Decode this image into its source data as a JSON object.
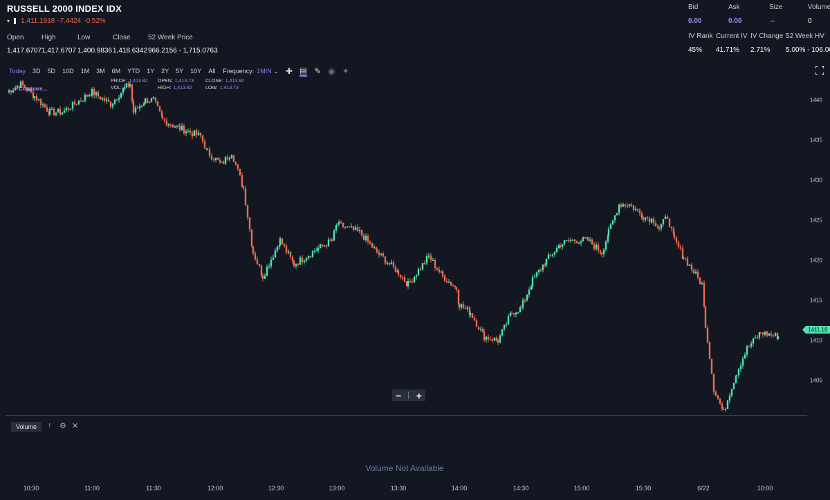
{
  "header": {
    "title": "RUSSELL 2000 INDEX IDX",
    "last_price": "1,411.1918",
    "change": "-7.4424",
    "change_pct": "-0.52%"
  },
  "ohlc": [
    {
      "label": "Open",
      "value": "1,417.6707"
    },
    {
      "label": "High",
      "value": "1,417.6707"
    },
    {
      "label": "Low",
      "value": "1,400.9836"
    },
    {
      "label": "Close",
      "value": "1,418.6342"
    },
    {
      "label": "52 Week Price",
      "value": "966.2156 - 1,715.0763"
    }
  ],
  "quote": [
    {
      "label": "Bid",
      "value": "0.00"
    },
    {
      "label": "Ask",
      "value": "0.00"
    },
    {
      "label": "Size",
      "value": "–"
    },
    {
      "label": "Volume",
      "value": "0"
    }
  ],
  "iv": [
    {
      "label": "IV Rank",
      "value": "45%"
    },
    {
      "label": "Current IV",
      "value": "41.71%"
    },
    {
      "label": "IV Change",
      "value": "2.71%"
    },
    {
      "label": "52 Week HV",
      "value": "5.00% - 106.00%"
    }
  ],
  "range_buttons": [
    "Today",
    "3D",
    "5D",
    "10D",
    "1M",
    "3M",
    "6M",
    "YTD",
    "1Y",
    "2Y",
    "5Y",
    "10Y",
    "All"
  ],
  "active_range": "Today",
  "frequency": {
    "label": "Frequency:",
    "value": "1MIN"
  },
  "compare_label": "+ Compare...",
  "hover": {
    "price_label": "PRICE:",
    "price": "1,413.82",
    "vol_label": "VOL:",
    "vol": "0",
    "open_label": "OPEN:",
    "open": "1,413.73",
    "high_label": "HIGH:",
    "high": "1,413.92",
    "close_label": "CLOSE:",
    "close": "1,413.92",
    "low_label": "LOW:",
    "low": "1,413.73"
  },
  "volume_panel": {
    "tab": "Volume",
    "message": "Volume Not Available"
  },
  "last_tag": "1411.19",
  "colors": {
    "up": "#4fe3b0",
    "down": "#f26b4a",
    "accent": "#8b7cf6",
    "background": "#121722"
  },
  "chart_data": {
    "type": "candlestick",
    "interval": "1 minute",
    "x_ticks": [
      "10:30",
      "11:00",
      "11:30",
      "12:00",
      "12:30",
      "13:00",
      "13:30",
      "14:00",
      "14:30",
      "15:00",
      "15:30",
      "6/22",
      "10:00"
    ],
    "y_ticks": [
      1440,
      1435,
      1430,
      1425,
      1420,
      1415,
      1410,
      1405
    ],
    "ylim": [
      1400.5,
      1442.5
    ],
    "series_close": [
      {
        "t": "10:15",
        "v": 1441.0
      },
      {
        "t": "10:25",
        "v": 1442.0
      },
      {
        "t": "10:33",
        "v": 1440.5
      },
      {
        "t": "10:40",
        "v": 1438.5
      },
      {
        "t": "10:50",
        "v": 1438.5
      },
      {
        "t": "11:00",
        "v": 1441.0
      },
      {
        "t": "11:10",
        "v": 1439.5
      },
      {
        "t": "11:22",
        "v": 1441.5
      },
      {
        "t": "11:25",
        "v": 1442.0
      },
      {
        "t": "11:28",
        "v": 1438.5
      },
      {
        "t": "11:35",
        "v": 1440.0
      },
      {
        "t": "11:40",
        "v": 1440.0
      },
      {
        "t": "11:45",
        "v": 1437.5
      },
      {
        "t": "11:55",
        "v": 1436.5
      },
      {
        "t": "12:00",
        "v": 1435.5
      },
      {
        "t": "12:05",
        "v": 1433.5
      },
      {
        "t": "12:08",
        "v": 1432.0
      },
      {
        "t": "12:12",
        "v": 1433.5
      },
      {
        "t": "12:16",
        "v": 1429.0
      },
      {
        "t": "12:20",
        "v": 1421.0
      },
      {
        "t": "12:23",
        "v": 1418.0
      },
      {
        "t": "12:30",
        "v": 1422.5
      },
      {
        "t": "12:38",
        "v": 1419.5
      },
      {
        "t": "12:45",
        "v": 1421.5
      },
      {
        "t": "12:55",
        "v": 1422.5
      },
      {
        "t": "13:00",
        "v": 1424.5
      },
      {
        "t": "13:08",
        "v": 1423.5
      },
      {
        "t": "13:15",
        "v": 1421.0
      },
      {
        "t": "13:25",
        "v": 1418.5
      },
      {
        "t": "13:33",
        "v": 1417.0
      },
      {
        "t": "13:42",
        "v": 1420.5
      },
      {
        "t": "13:48",
        "v": 1418.0
      },
      {
        "t": "13:55",
        "v": 1416.5
      },
      {
        "t": "14:00",
        "v": 1414.5
      },
      {
        "t": "14:05",
        "v": 1413.5
      },
      {
        "t": "14:10",
        "v": 1410.5
      },
      {
        "t": "14:17",
        "v": 1410.0
      },
      {
        "t": "14:25",
        "v": 1413.5
      },
      {
        "t": "14:30",
        "v": 1414.0
      },
      {
        "t": "14:35",
        "v": 1417.5
      },
      {
        "t": "14:42",
        "v": 1420.0
      },
      {
        "t": "14:50",
        "v": 1422.0
      },
      {
        "t": "14:57",
        "v": 1422.5
      },
      {
        "t": "15:05",
        "v": 1422.5
      },
      {
        "t": "15:10",
        "v": 1421.0
      },
      {
        "t": "15:16",
        "v": 1423.5
      },
      {
        "t": "15:22",
        "v": 1427.0
      },
      {
        "t": "15:28",
        "v": 1427.0
      },
      {
        "t": "15:35",
        "v": 1425.5
      },
      {
        "t": "15:42",
        "v": 1425.0
      },
      {
        "t": "15:46",
        "v": 1424.0
      },
      {
        "t": "15:50",
        "v": 1425.5
      },
      {
        "t": "15:53",
        "v": 1422.5
      },
      {
        "t": "15:58",
        "v": 1420.5
      },
      {
        "t": "6/22 09:30",
        "v": 1417.0
      },
      {
        "t": "6/22 09:32",
        "v": 1412.0
      },
      {
        "t": "6/22 09:38",
        "v": 1404.0
      },
      {
        "t": "6/22 09:42",
        "v": 1401.0
      },
      {
        "t": "6/22 09:47",
        "v": 1403.5
      },
      {
        "t": "6/22 09:53",
        "v": 1406.0
      },
      {
        "t": "6/22 10:00",
        "v": 1409.0
      },
      {
        "t": "6/22 10:03",
        "v": 1411.0
      },
      {
        "t": "6/22 10:06",
        "v": 1410.5
      }
    ]
  }
}
